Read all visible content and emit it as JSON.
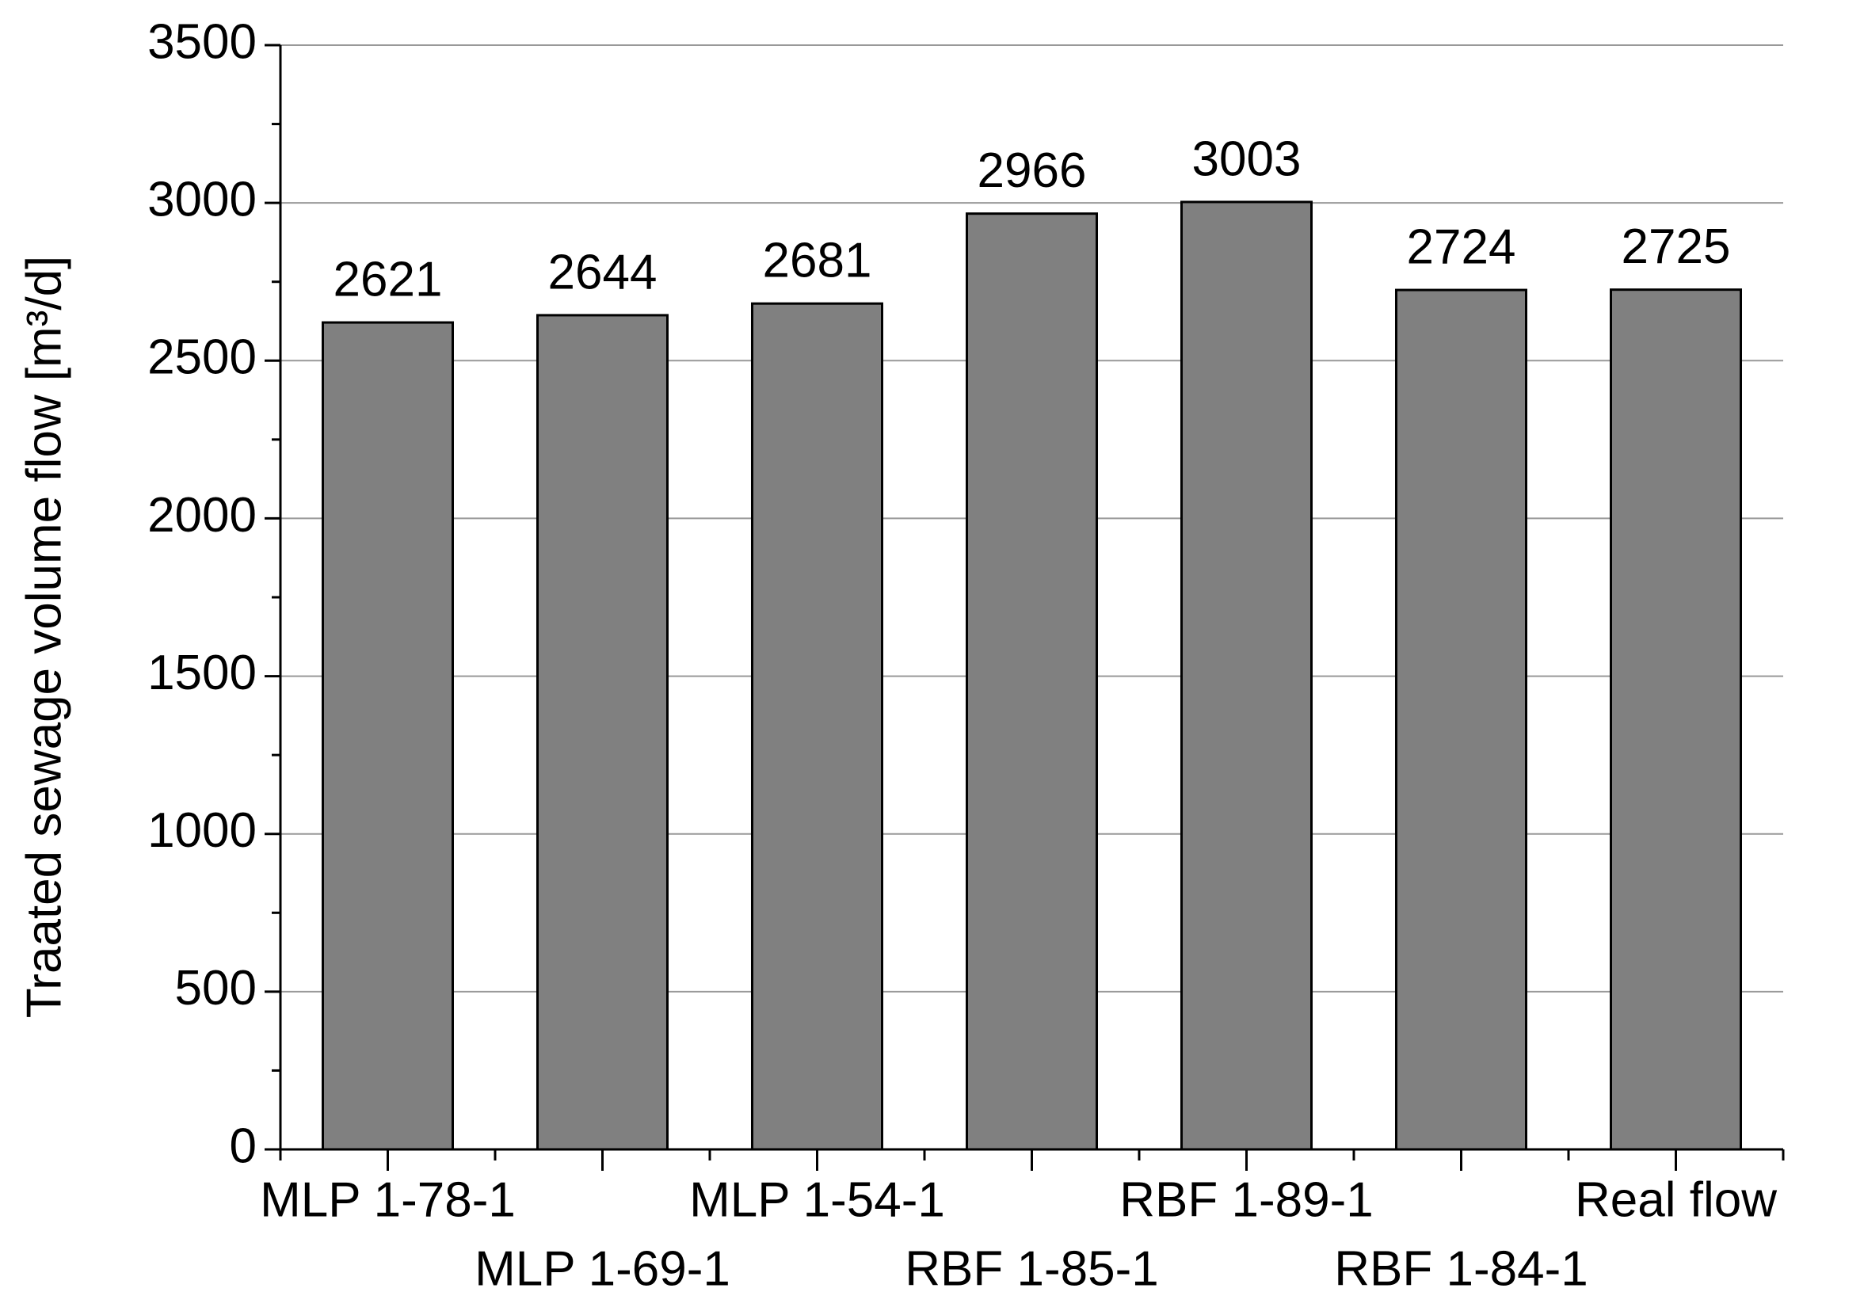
{
  "chart_data": {
    "type": "bar",
    "ylabel": "Traated sewage volume flow [m³/d]",
    "categories": [
      "MLP 1-78-1",
      "MLP 1-69-1",
      "MLP 1-54-1",
      "RBF 1-85-1",
      "RBF 1-89-1",
      "RBF 1-84-1",
      "Real flow"
    ],
    "values": [
      2621,
      2644,
      2681,
      2966,
      3003,
      2724,
      2725
    ],
    "color": "#808080",
    "ylim": [
      0,
      3500
    ],
    "yticks": [
      0,
      500,
      1000,
      1500,
      2000,
      2500,
      3000,
      3500
    ],
    "grid": true
  }
}
